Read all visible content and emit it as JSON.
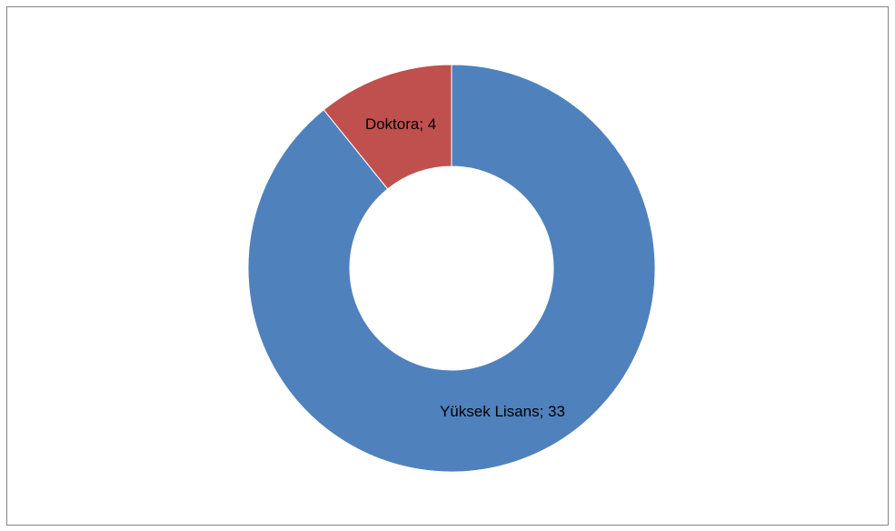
{
  "chart_data": {
    "type": "donut",
    "categories": [
      "Yüksek Lisans",
      "Doktora"
    ],
    "values": [
      33,
      4
    ],
    "value_labels": [
      "Yüksek Lisans; 33",
      "Doktora; 4"
    ],
    "colors": [
      "#4f81bd",
      "#c0504d"
    ]
  }
}
